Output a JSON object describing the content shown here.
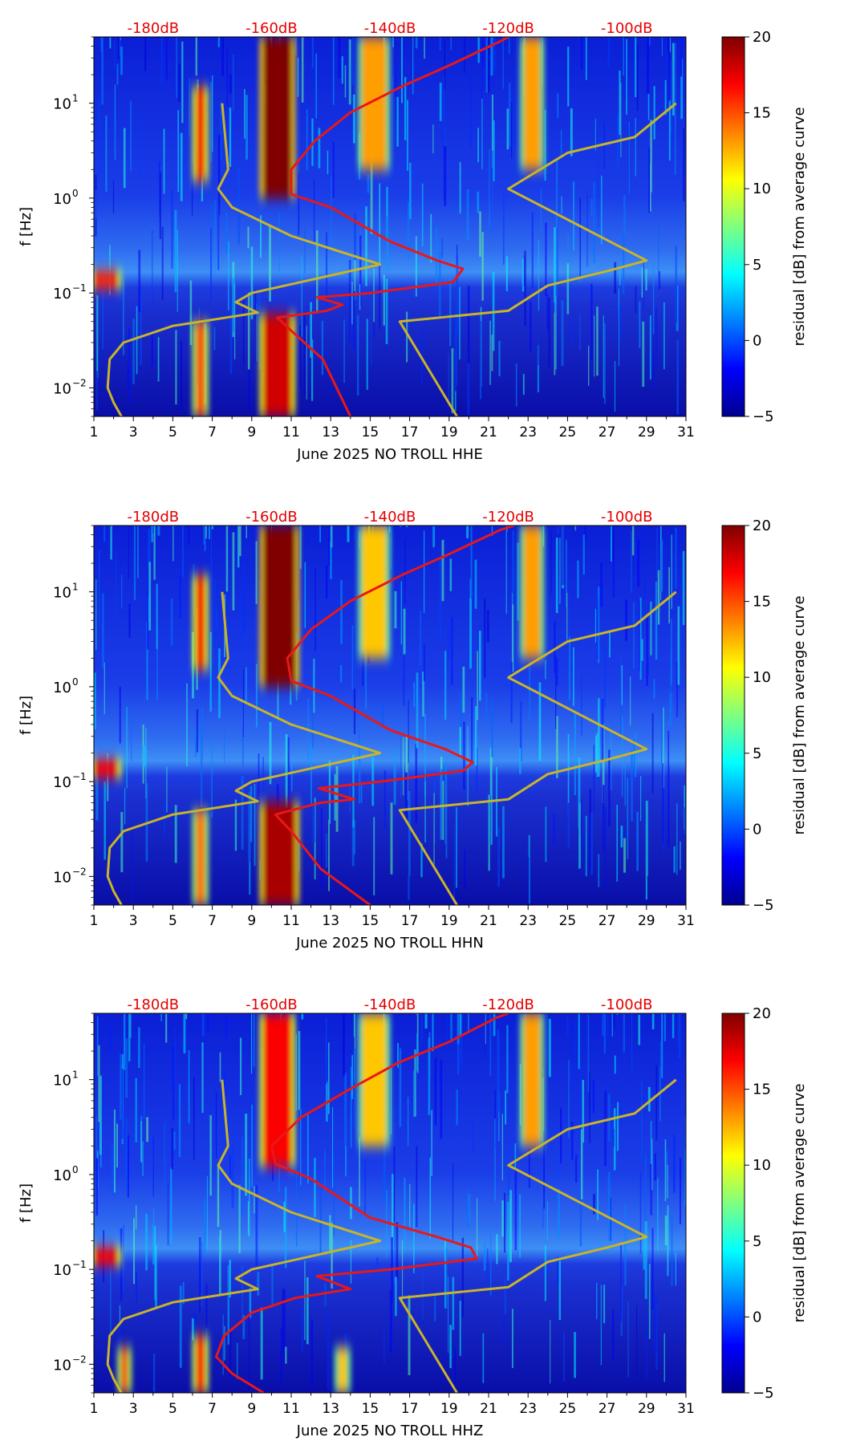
{
  "colors": {
    "psd_curve": "#e81818",
    "model_curve": "#c8b42a",
    "db_label": "#e60000"
  },
  "chart_data": [
    {
      "type": "heatmap",
      "channel": "HHE",
      "xlabel": "June 2025 NO TROLL  HHE",
      "ylabel": "f [Hz]",
      "xlim": [
        1,
        31
      ],
      "ylim": [
        0.005,
        50
      ],
      "yscale": "log",
      "xticks": [
        "1",
        "3",
        "5",
        "7",
        "9",
        "11",
        "13",
        "15",
        "17",
        "19",
        "21",
        "23",
        "25",
        "27",
        "29",
        "31"
      ],
      "yticks": [
        {
          "value": 0.01,
          "base": "10",
          "exp": "−2"
        },
        {
          "value": 0.1,
          "base": "10",
          "exp": "−1"
        },
        {
          "value": 1,
          "base": "10",
          "exp": "0"
        },
        {
          "value": 10,
          "base": "10",
          "exp": "1"
        }
      ],
      "top_axis_labels": [
        {
          "x": 4,
          "label": "-180dB"
        },
        {
          "x": 10,
          "label": "-160dB"
        },
        {
          "x": 16,
          "label": "-140dB"
        },
        {
          "x": 22,
          "label": "-120dB"
        },
        {
          "x": 28,
          "label": "-100dB"
        }
      ],
      "colorbar": {
        "label": "residual [dB] from average curve",
        "min": -5,
        "max": 20,
        "ticks": [
          "−5",
          "0",
          "5",
          "10",
          "15",
          "20"
        ]
      },
      "intense_bands": [
        {
          "x0": 9.6,
          "x1": 11.0,
          "f0": 1.0,
          "f1": 50,
          "level": 20
        },
        {
          "x0": 9.6,
          "x1": 11.0,
          "f0": 0.005,
          "f1": 0.06,
          "level": 18
        },
        {
          "x0": 6.2,
          "x1": 6.6,
          "f0": 1.5,
          "f1": 15,
          "level": 17
        },
        {
          "x0": 6.2,
          "x1": 6.6,
          "f0": 0.005,
          "f1": 0.05,
          "level": 15
        },
        {
          "x0": 14.6,
          "x1": 15.8,
          "f0": 2,
          "f1": 50,
          "level": 13
        },
        {
          "x0": 22.8,
          "x1": 23.6,
          "f0": 2,
          "f1": 50,
          "level": 13
        },
        {
          "x0": 1.0,
          "x1": 2.2,
          "f0": 0.11,
          "f1": 0.17,
          "level": 16
        }
      ],
      "series": [
        {
          "name": "red PSD curve",
          "color": "#e81818",
          "points": [
            [
              14,
              0.005
            ],
            [
              12.6,
              0.02
            ],
            [
              11,
              0.04
            ],
            [
              10.3,
              0.055
            ],
            [
              12.8,
              0.065
            ],
            [
              13.6,
              0.075
            ],
            [
              12.3,
              0.09
            ],
            [
              15,
              0.1
            ],
            [
              19.2,
              0.13
            ],
            [
              19.7,
              0.18
            ],
            [
              18.4,
              0.22
            ],
            [
              16,
              0.35
            ],
            [
              13,
              0.8
            ],
            [
              11,
              1.1
            ],
            [
              11,
              2
            ],
            [
              12.2,
              4
            ],
            [
              14,
              8
            ],
            [
              16.6,
              15
            ],
            [
              19,
              25
            ],
            [
              21.6,
              45
            ],
            [
              22,
              50
            ]
          ]
        },
        {
          "name": "yellow model curve (left)",
          "color": "#c8b42a",
          "points": [
            [
              2.4,
              0.005
            ],
            [
              2,
              0.007
            ],
            [
              1.7,
              0.01
            ],
            [
              1.8,
              0.02
            ],
            [
              2.5,
              0.03
            ],
            [
              5,
              0.045
            ],
            [
              9.3,
              0.062
            ],
            [
              8.2,
              0.08
            ],
            [
              9,
              0.1
            ],
            [
              15.5,
              0.2
            ],
            [
              11,
              0.4
            ],
            [
              8,
              0.8
            ],
            [
              7.3,
              1.25
            ],
            [
              7.8,
              2
            ],
            [
              7.5,
              10
            ]
          ]
        },
        {
          "name": "yellow model curve (right)",
          "color": "#c8b42a",
          "points": [
            [
              19.4,
              0.005
            ],
            [
              16.5,
              0.05
            ],
            [
              22,
              0.065
            ],
            [
              24,
              0.12
            ],
            [
              27,
              0.17
            ],
            [
              29,
              0.22
            ],
            [
              22,
              1.25
            ],
            [
              25,
              3
            ],
            [
              28.4,
              4.4
            ],
            [
              30.5,
              10
            ]
          ]
        }
      ]
    },
    {
      "type": "heatmap",
      "channel": "HHN",
      "xlabel": "June 2025 NO TROLL  HHN",
      "ylabel": "f [Hz]",
      "xlim": [
        1,
        31
      ],
      "ylim": [
        0.005,
        50
      ],
      "yscale": "log",
      "xticks": [
        "1",
        "3",
        "5",
        "7",
        "9",
        "11",
        "13",
        "15",
        "17",
        "19",
        "21",
        "23",
        "25",
        "27",
        "29",
        "31"
      ],
      "yticks": [
        {
          "value": 0.01,
          "base": "10",
          "exp": "−2"
        },
        {
          "value": 0.1,
          "base": "10",
          "exp": "−1"
        },
        {
          "value": 1,
          "base": "10",
          "exp": "0"
        },
        {
          "value": 10,
          "base": "10",
          "exp": "1"
        }
      ],
      "top_axis_labels": [
        {
          "x": 4,
          "label": "-180dB"
        },
        {
          "x": 10,
          "label": "-160dB"
        },
        {
          "x": 16,
          "label": "-140dB"
        },
        {
          "x": 22,
          "label": "-120dB"
        },
        {
          "x": 28,
          "label": "-100dB"
        }
      ],
      "colorbar": {
        "label": "residual [dB] from average curve",
        "min": -5,
        "max": 20,
        "ticks": [
          "−5",
          "0",
          "5",
          "10",
          "15",
          "20"
        ]
      },
      "intense_bands": [
        {
          "x0": 9.6,
          "x1": 11.2,
          "f0": 1.0,
          "f1": 50,
          "level": 20
        },
        {
          "x0": 9.6,
          "x1": 11.2,
          "f0": 0.005,
          "f1": 0.06,
          "level": 19
        },
        {
          "x0": 6.2,
          "x1": 6.6,
          "f0": 1.5,
          "f1": 15,
          "level": 17
        },
        {
          "x0": 6.2,
          "x1": 6.6,
          "f0": 0.005,
          "f1": 0.05,
          "level": 14
        },
        {
          "x0": 14.6,
          "x1": 15.8,
          "f0": 2,
          "f1": 50,
          "level": 12
        },
        {
          "x0": 22.8,
          "x1": 23.6,
          "f0": 2,
          "f1": 50,
          "level": 13
        },
        {
          "x0": 1.0,
          "x1": 2.2,
          "f0": 0.11,
          "f1": 0.17,
          "level": 17
        }
      ],
      "series": [
        {
          "name": "red PSD curve",
          "color": "#e81818",
          "points": [
            [
              15,
              0.005
            ],
            [
              12.5,
              0.012
            ],
            [
              11,
              0.03
            ],
            [
              10.2,
              0.045
            ],
            [
              12.5,
              0.06
            ],
            [
              14.2,
              0.065
            ],
            [
              12.4,
              0.085
            ],
            [
              15.5,
              0.1
            ],
            [
              19.7,
              0.13
            ],
            [
              20.2,
              0.16
            ],
            [
              18.8,
              0.22
            ],
            [
              16,
              0.35
            ],
            [
              13,
              0.8
            ],
            [
              11,
              1.15
            ],
            [
              10.8,
              2
            ],
            [
              12,
              4
            ],
            [
              14,
              8
            ],
            [
              16.6,
              15
            ],
            [
              19,
              25
            ],
            [
              21.6,
              45
            ],
            [
              22.3,
              50
            ]
          ]
        },
        {
          "name": "yellow model curve (left)",
          "color": "#c8b42a",
          "points": [
            [
              2.4,
              0.005
            ],
            [
              2,
              0.007
            ],
            [
              1.7,
              0.01
            ],
            [
              1.8,
              0.02
            ],
            [
              2.5,
              0.03
            ],
            [
              5,
              0.045
            ],
            [
              9.3,
              0.062
            ],
            [
              8.2,
              0.08
            ],
            [
              9,
              0.1
            ],
            [
              15.5,
              0.2
            ],
            [
              11,
              0.4
            ],
            [
              8,
              0.8
            ],
            [
              7.3,
              1.25
            ],
            [
              7.8,
              2
            ],
            [
              7.5,
              10
            ]
          ]
        },
        {
          "name": "yellow model curve (right)",
          "color": "#c8b42a",
          "points": [
            [
              19.4,
              0.005
            ],
            [
              16.5,
              0.05
            ],
            [
              22,
              0.065
            ],
            [
              24,
              0.12
            ],
            [
              27,
              0.17
            ],
            [
              29,
              0.22
            ],
            [
              22,
              1.25
            ],
            [
              25,
              3
            ],
            [
              28.4,
              4.4
            ],
            [
              30.5,
              10
            ]
          ]
        }
      ]
    },
    {
      "type": "heatmap",
      "channel": "HHZ",
      "xlabel": "June 2025 NO TROLL  HHZ",
      "ylabel": "f [Hz]",
      "xlim": [
        1,
        31
      ],
      "ylim": [
        0.005,
        50
      ],
      "yscale": "log",
      "xticks": [
        "1",
        "3",
        "5",
        "7",
        "9",
        "11",
        "13",
        "15",
        "17",
        "19",
        "21",
        "23",
        "25",
        "27",
        "29",
        "31"
      ],
      "yticks": [
        {
          "value": 0.01,
          "base": "10",
          "exp": "−2"
        },
        {
          "value": 0.1,
          "base": "10",
          "exp": "−1"
        },
        {
          "value": 1,
          "base": "10",
          "exp": "0"
        },
        {
          "value": 10,
          "base": "10",
          "exp": "1"
        }
      ],
      "top_axis_labels": [
        {
          "x": 4,
          "label": "-180dB"
        },
        {
          "x": 10,
          "label": "-160dB"
        },
        {
          "x": 16,
          "label": "-140dB"
        },
        {
          "x": 22,
          "label": "-120dB"
        },
        {
          "x": 28,
          "label": "-100dB"
        }
      ],
      "colorbar": {
        "label": "residual [dB] from average curve",
        "min": -5,
        "max": 20,
        "ticks": [
          "−5",
          "0",
          "5",
          "10",
          "15",
          "20"
        ]
      },
      "intense_bands": [
        {
          "x0": 9.6,
          "x1": 11.0,
          "f0": 1.2,
          "f1": 50,
          "level": 17
        },
        {
          "x0": 6.2,
          "x1": 6.6,
          "f0": 0.005,
          "f1": 0.02,
          "level": 16
        },
        {
          "x0": 14.6,
          "x1": 15.8,
          "f0": 2,
          "f1": 50,
          "level": 12
        },
        {
          "x0": 22.8,
          "x1": 23.6,
          "f0": 2,
          "f1": 50,
          "level": 13
        },
        {
          "x0": 1.0,
          "x1": 2.2,
          "f0": 0.11,
          "f1": 0.17,
          "level": 17
        },
        {
          "x0": 2.4,
          "x1": 2.7,
          "f0": 0.005,
          "f1": 0.015,
          "level": 15
        },
        {
          "x0": 13.4,
          "x1": 13.8,
          "f0": 0.005,
          "f1": 0.015,
          "level": 12
        }
      ],
      "series": [
        {
          "name": "red PSD curve",
          "color": "#e81818",
          "points": [
            [
              9.6,
              0.005
            ],
            [
              8,
              0.008
            ],
            [
              7.2,
              0.012
            ],
            [
              7.6,
              0.02
            ],
            [
              9,
              0.035
            ],
            [
              11.2,
              0.05
            ],
            [
              14,
              0.062
            ],
            [
              12.3,
              0.085
            ],
            [
              16,
              0.1
            ],
            [
              20.4,
              0.13
            ],
            [
              20.1,
              0.17
            ],
            [
              18.4,
              0.22
            ],
            [
              15,
              0.35
            ],
            [
              12,
              0.9
            ],
            [
              10.2,
              1.3
            ],
            [
              10,
              2
            ],
            [
              11.5,
              4
            ],
            [
              14,
              8
            ],
            [
              16.4,
              15
            ],
            [
              19,
              25
            ],
            [
              21.4,
              45
            ],
            [
              22,
              50
            ]
          ]
        },
        {
          "name": "yellow model curve (left)",
          "color": "#c8b42a",
          "points": [
            [
              2.4,
              0.005
            ],
            [
              2,
              0.007
            ],
            [
              1.7,
              0.01
            ],
            [
              1.8,
              0.02
            ],
            [
              2.5,
              0.03
            ],
            [
              5,
              0.045
            ],
            [
              9.3,
              0.062
            ],
            [
              8.2,
              0.08
            ],
            [
              9,
              0.1
            ],
            [
              15.5,
              0.2
            ],
            [
              11,
              0.4
            ],
            [
              8,
              0.8
            ],
            [
              7.3,
              1.25
            ],
            [
              7.8,
              2
            ],
            [
              7.5,
              10
            ]
          ]
        },
        {
          "name": "yellow model curve (right)",
          "color": "#c8b42a",
          "points": [
            [
              19.4,
              0.005
            ],
            [
              16.5,
              0.05
            ],
            [
              22,
              0.065
            ],
            [
              24,
              0.12
            ],
            [
              27,
              0.17
            ],
            [
              29,
              0.22
            ],
            [
              22,
              1.25
            ],
            [
              25,
              3
            ],
            [
              28.4,
              4.4
            ],
            [
              30.5,
              10
            ]
          ]
        }
      ]
    }
  ]
}
